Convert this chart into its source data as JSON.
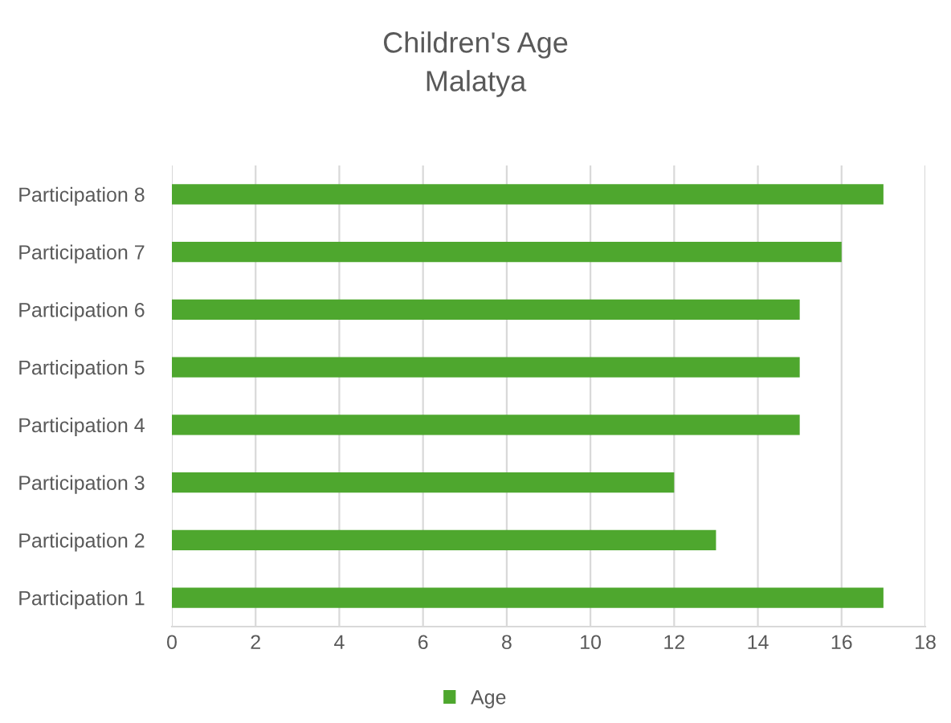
{
  "chart_data": {
    "type": "bar",
    "orientation": "horizontal",
    "title": "Children's Age",
    "subtitle": "Malatya",
    "categories": [
      "Participation 8",
      "Participation 7",
      "Participation 6",
      "Participation 5",
      "Participation 4",
      "Participation 3",
      "Participation 2",
      "Participation 1"
    ],
    "series": [
      {
        "name": "Age",
        "color": "#4ea72e",
        "values": [
          17,
          16,
          15,
          15,
          15,
          12,
          13,
          17
        ]
      }
    ],
    "xlim": [
      0,
      18
    ],
    "xticks": [
      0,
      2,
      4,
      6,
      8,
      10,
      12,
      14,
      16,
      18
    ],
    "grid": "x",
    "legend": "bottom"
  }
}
